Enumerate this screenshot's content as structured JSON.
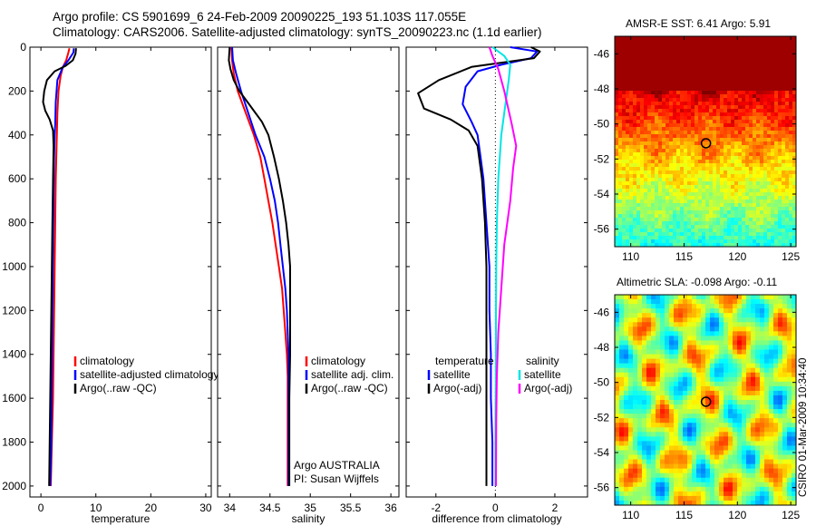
{
  "header": {
    "title_line1": "Argo profile: CS 5901699_6 24-Feb-2009 20090225_193 51.103S 117.055E",
    "title_line2": "Climatology: CARS2006. Satellite-adjusted climatology: synTS_20090223.nc (1.1d earlier)"
  },
  "side_label": "CSIRO 01-Mar-2009 10:34:40",
  "colors": {
    "climatology": "#ff0000",
    "satellite": "#0000ff",
    "argo": "#000000",
    "sal_sat": "#00e5e5",
    "sal_argo": "#ff00ff"
  },
  "chart_data": [
    {
      "id": "temperature",
      "type": "line",
      "xlabel": "temperature",
      "ylabel": "",
      "xlim": [
        -2,
        31
      ],
      "ylim": [
        2050,
        0
      ],
      "y_reversed": true,
      "xticks": [
        0,
        10,
        20,
        30
      ],
      "yticks": [
        0,
        200,
        400,
        600,
        800,
        1000,
        1200,
        1400,
        1600,
        1800,
        2000
      ],
      "legend": {
        "position": "lower-right",
        "entries": [
          "climatology",
          "satellite-adjusted climatology",
          "Argo(..raw -QC)"
        ]
      },
      "series": [
        {
          "name": "climatology",
          "color": "#ff0000",
          "points": [
            [
              5.2,
              5
            ],
            [
              5.0,
              25
            ],
            [
              4.6,
              60
            ],
            [
              4.0,
              90
            ],
            [
              3.6,
              130
            ],
            [
              3.2,
              200
            ],
            [
              3.0,
              300
            ],
            [
              2.9,
              400
            ],
            [
              2.8,
              500
            ],
            [
              2.7,
              600
            ],
            [
              2.6,
              800
            ],
            [
              2.5,
              1000
            ],
            [
              2.4,
              1200
            ],
            [
              2.3,
              1400
            ],
            [
              2.2,
              1600
            ],
            [
              2.0,
              1800
            ],
            [
              1.8,
              2000
            ]
          ]
        },
        {
          "name": "satellite-adjusted climatology",
          "color": "#0000ff",
          "points": [
            [
              6.0,
              5
            ],
            [
              5.9,
              25
            ],
            [
              5.0,
              60
            ],
            [
              4.0,
              90
            ],
            [
              3.0,
              150
            ],
            [
              2.7,
              250
            ],
            [
              2.6,
              350
            ],
            [
              2.5,
              400
            ],
            [
              2.4,
              500
            ],
            [
              2.3,
              700
            ],
            [
              2.2,
              900
            ],
            [
              2.1,
              1200
            ],
            [
              2.0,
              1500
            ],
            [
              1.9,
              1800
            ],
            [
              1.7,
              2000
            ]
          ]
        },
        {
          "name": "Argo(..raw -QC)",
          "color": "#000000",
          "points": [
            [
              6.4,
              5
            ],
            [
              6.3,
              30
            ],
            [
              5.8,
              60
            ],
            [
              4.5,
              85
            ],
            [
              2.5,
              110
            ],
            [
              1.1,
              150
            ],
            [
              0.6,
              200
            ],
            [
              0.4,
              250
            ],
            [
              0.8,
              290
            ],
            [
              1.6,
              330
            ],
            [
              2.2,
              380
            ],
            [
              2.3,
              450
            ],
            [
              2.2,
              600
            ],
            [
              2.1,
              800
            ],
            [
              2.0,
              1000
            ],
            [
              1.9,
              1200
            ],
            [
              1.8,
              1400
            ],
            [
              1.7,
              1600
            ],
            [
              1.6,
              1800
            ],
            [
              1.5,
              2000
            ]
          ]
        }
      ]
    },
    {
      "id": "salinity",
      "type": "line",
      "xlabel": "salinity",
      "ylabel": "",
      "xlim": [
        33.85,
        36.1
      ],
      "ylim": [
        2050,
        0
      ],
      "y_reversed": true,
      "xticks": [
        34,
        34.5,
        35,
        35.5,
        36
      ],
      "yticks": [
        0,
        200,
        400,
        600,
        800,
        1000,
        1200,
        1400,
        1600,
        1800,
        2000
      ],
      "legend": {
        "position": "lower-right",
        "entries": [
          "climatology",
          "satellite adj. clim.",
          "Argo(..raw -QC)"
        ]
      },
      "annotations": [
        "Argo AUSTRALIA",
        "PI: Susan Wijffels"
      ],
      "series": [
        {
          "name": "climatology",
          "color": "#ff0000",
          "points": [
            [
              34.02,
              0
            ],
            [
              34.03,
              60
            ],
            [
              34.05,
              120
            ],
            [
              34.1,
              200
            ],
            [
              34.2,
              300
            ],
            [
              34.3,
              400
            ],
            [
              34.38,
              500
            ],
            [
              34.43,
              600
            ],
            [
              34.48,
              700
            ],
            [
              34.53,
              800
            ],
            [
              34.57,
              900
            ],
            [
              34.61,
              1000
            ],
            [
              34.65,
              1100
            ],
            [
              34.67,
              1200
            ],
            [
              34.69,
              1300
            ],
            [
              34.71,
              1400
            ],
            [
              34.72,
              1500
            ],
            [
              34.72,
              1700
            ],
            [
              34.72,
              2000
            ]
          ]
        },
        {
          "name": "satellite adj. clim.",
          "color": "#0000ff",
          "points": [
            [
              34.03,
              0
            ],
            [
              34.04,
              60
            ],
            [
              34.08,
              120
            ],
            [
              34.14,
              200
            ],
            [
              34.23,
              300
            ],
            [
              34.32,
              400
            ],
            [
              34.43,
              500
            ],
            [
              34.5,
              600
            ],
            [
              34.56,
              700
            ],
            [
              34.6,
              800
            ],
            [
              34.63,
              900
            ],
            [
              34.66,
              1000
            ],
            [
              34.69,
              1100
            ],
            [
              34.71,
              1200
            ],
            [
              34.72,
              1300
            ],
            [
              34.73,
              1400
            ],
            [
              34.73,
              1600
            ],
            [
              34.73,
              2000
            ]
          ]
        },
        {
          "name": "Argo(..raw -QC)",
          "color": "#000000",
          "points": [
            [
              34.0,
              0
            ],
            [
              33.99,
              60
            ],
            [
              34.01,
              100
            ],
            [
              34.05,
              150
            ],
            [
              34.12,
              200
            ],
            [
              34.24,
              260
            ],
            [
              34.32,
              300
            ],
            [
              34.4,
              340
            ],
            [
              34.48,
              400
            ],
            [
              34.55,
              500
            ],
            [
              34.61,
              600
            ],
            [
              34.66,
              700
            ],
            [
              34.7,
              800
            ],
            [
              34.73,
              900
            ],
            [
              34.75,
              1000
            ],
            [
              34.75,
              1200
            ],
            [
              34.75,
              1400
            ],
            [
              34.74,
              1600
            ],
            [
              34.74,
              1800
            ],
            [
              34.74,
              2000
            ]
          ]
        }
      ]
    },
    {
      "id": "difference",
      "type": "line",
      "xlabel": "difference from climatology",
      "ylabel": "",
      "xlim": [
        -3,
        3.1
      ],
      "ylim": [
        2050,
        0
      ],
      "y_reversed": true,
      "xticks": [
        -2,
        0,
        2
      ],
      "yticks": [
        0,
        200,
        400,
        600,
        800,
        1000,
        1200,
        1400,
        1600,
        1800,
        2000
      ],
      "legend": {
        "position": "lower-right",
        "groups": [
          {
            "header": "temperature",
            "entries": [
              "satellite",
              "Argo(-adj)"
            ]
          },
          {
            "header": "salinity",
            "entries": [
              "satellite",
              "Argo(-adj)"
            ]
          }
        ]
      },
      "series": [
        {
          "name": "temperature satellite",
          "color": "#0000ff",
          "points": [
            [
              0.5,
              0
            ],
            [
              1.4,
              20
            ],
            [
              1.2,
              50
            ],
            [
              0.2,
              80
            ],
            [
              -0.6,
              110
            ],
            [
              -1.0,
              180
            ],
            [
              -1.1,
              260
            ],
            [
              -0.8,
              340
            ],
            [
              -0.6,
              400
            ],
            [
              -0.5,
              500
            ],
            [
              -0.4,
              600
            ],
            [
              -0.3,
              800
            ],
            [
              -0.2,
              1000
            ],
            [
              -0.2,
              1200
            ],
            [
              -0.15,
              1400
            ],
            [
              -0.15,
              1600
            ],
            [
              -0.1,
              1800
            ],
            [
              -0.1,
              2000
            ]
          ]
        },
        {
          "name": "temperature Argo(-adj)",
          "color": "#000000",
          "points": [
            [
              1.2,
              0
            ],
            [
              1.5,
              20
            ],
            [
              1.3,
              50
            ],
            [
              -0.8,
              90
            ],
            [
              -1.9,
              150
            ],
            [
              -2.6,
              210
            ],
            [
              -2.4,
              280
            ],
            [
              -1.5,
              330
            ],
            [
              -0.9,
              380
            ],
            [
              -0.6,
              450
            ],
            [
              -0.45,
              600
            ],
            [
              -0.35,
              800
            ],
            [
              -0.3,
              1000
            ],
            [
              -0.3,
              1200
            ],
            [
              -0.3,
              1400
            ],
            [
              -0.3,
              1600
            ],
            [
              -0.3,
              1800
            ],
            [
              -0.3,
              2000
            ]
          ]
        },
        {
          "name": "salinity satellite",
          "color": "#00e5e5",
          "points": [
            [
              -0.1,
              0
            ],
            [
              0.3,
              40
            ],
            [
              0.5,
              80
            ],
            [
              0.45,
              150
            ],
            [
              0.35,
              250
            ],
            [
              0.2,
              400
            ],
            [
              0.1,
              600
            ],
            [
              0.05,
              800
            ],
            [
              0.03,
              1000
            ],
            [
              0.02,
              1200
            ],
            [
              0.02,
              1400
            ],
            [
              0.01,
              1600
            ],
            [
              0.0,
              1800
            ],
            [
              0.0,
              2000
            ]
          ]
        },
        {
          "name": "salinity Argo(-adj)",
          "color": "#ff00ff",
          "points": [
            [
              -0.2,
              0
            ],
            [
              -0.1,
              40
            ],
            [
              0.1,
              100
            ],
            [
              0.3,
              200
            ],
            [
              0.55,
              350
            ],
            [
              0.7,
              450
            ],
            [
              0.6,
              550
            ],
            [
              0.5,
              700
            ],
            [
              0.3,
              900
            ],
            [
              0.2,
              1100
            ],
            [
              0.1,
              1300
            ],
            [
              0.05,
              1500
            ],
            [
              0.03,
              1700
            ],
            [
              0.02,
              2000
            ]
          ]
        }
      ]
    },
    {
      "id": "amsr_sst",
      "type": "heatmap",
      "title": "AMSR-E SST: 6.41 Argo: 5.91",
      "xlim": [
        108.5,
        125.5
      ],
      "ylim": [
        -57,
        -45
      ],
      "xticks": [
        110,
        115,
        120,
        125
      ],
      "yticks": [
        -46,
        -48,
        -50,
        -52,
        -54,
        -56
      ],
      "argo_marker": {
        "lon": 117.055,
        "lat": -51.103
      }
    },
    {
      "id": "altimetric_sla",
      "type": "heatmap",
      "title": "Altimetric SLA: -0.098 Argo: -0.11",
      "xlim": [
        108.5,
        125.5
      ],
      "ylim": [
        -57,
        -45
      ],
      "xticks": [
        110,
        115,
        120,
        125
      ],
      "yticks": [
        -46,
        -48,
        -50,
        -52,
        -54,
        -56
      ],
      "argo_marker": {
        "lon": 117.055,
        "lat": -51.103
      }
    }
  ]
}
